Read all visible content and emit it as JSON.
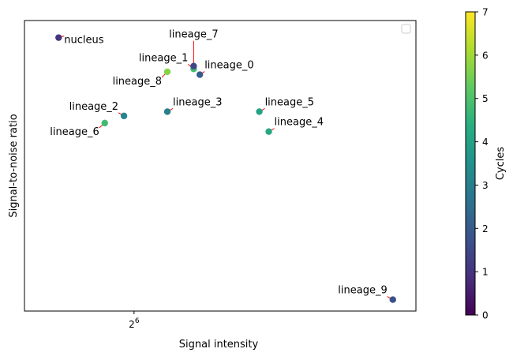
{
  "chart_data": {
    "type": "scatter",
    "xlabel": "Signal intensity",
    "ylabel": "Signal-to-noise ratio",
    "x_scale": "log2",
    "x_ticks": [
      {
        "value": 64,
        "label": "2",
        "exponent": "6"
      }
    ],
    "legend": "top-right (empty)",
    "grid": false,
    "colorbar": {
      "label": "Cycles",
      "min": 0,
      "max": 7,
      "ticks": [
        0,
        1,
        2,
        3,
        4,
        5,
        6,
        7
      ],
      "colormap": "viridis"
    },
    "points": [
      {
        "label": "nucleus",
        "x": 47.5,
        "y": 9.6,
        "cycles": 1.0
      },
      {
        "label": "lineage_0",
        "x": 83.0,
        "y": 8.3,
        "cycles": 2.0
      },
      {
        "label": "lineage_1",
        "x": 81.0,
        "y": 8.5,
        "cycles": 4.8
      },
      {
        "label": "lineage_7",
        "x": 81.0,
        "y": 8.6,
        "cycles": 1.5
      },
      {
        "label": "lineage_8",
        "x": 73.0,
        "y": 8.4,
        "cycles": 5.7
      },
      {
        "label": "lineage_3",
        "x": 73.0,
        "y": 7.0,
        "cycles": 3.0
      },
      {
        "label": "lineage_2",
        "x": 61.5,
        "y": 6.85,
        "cycles": 3.2
      },
      {
        "label": "lineage_6",
        "x": 57.0,
        "y": 6.6,
        "cycles": 4.8
      },
      {
        "label": "lineage_5",
        "x": 105.0,
        "y": 7.0,
        "cycles": 4.0
      },
      {
        "label": "lineage_4",
        "x": 109.0,
        "y": 6.3,
        "cycles": 4.2
      },
      {
        "label": "lineage_9",
        "x": 178.0,
        "y": 0.4,
        "cycles": 1.7
      }
    ]
  }
}
